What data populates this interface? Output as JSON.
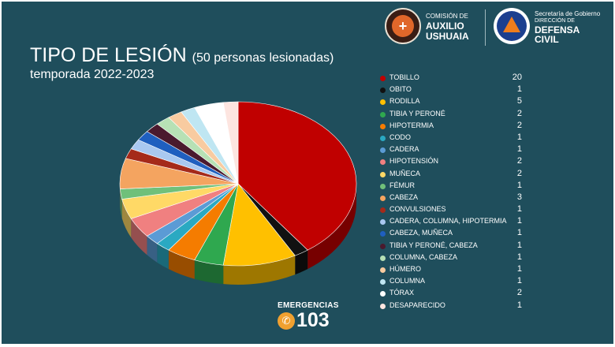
{
  "header": {
    "title": "TIPO DE LESIÓN",
    "title_sub": "(50 personas lesionadas)",
    "subtitle": "temporada 2022-2023"
  },
  "logos": {
    "left": {
      "line1": "COMISIÓN DE",
      "line2": "AUXILIO",
      "line3": "USHUAIA"
    },
    "right": {
      "line1": "Secretaría de Gobierno",
      "line2": "DIRECCIÓN DE",
      "line3": "DEFENSA",
      "line4": "CIVIL"
    }
  },
  "footer": {
    "emergency_label": "EMERGENCIAS",
    "emergency_number": "103"
  },
  "chart_data": {
    "type": "pie",
    "title": "TIPO DE LESIÓN (50 personas lesionadas)",
    "subtitle": "temporada 2022-2023",
    "legend_position": "right",
    "slices": [
      {
        "label": "TOBILLO",
        "value": 20,
        "color": "#c00000"
      },
      {
        "label": "OBITO",
        "value": 1,
        "color": "#111111"
      },
      {
        "label": "RODILLA",
        "value": 5,
        "color": "#ffc000"
      },
      {
        "label": "TIBIA Y PERONÉ",
        "value": 2,
        "color": "#2fa84f"
      },
      {
        "label": "HIPOTERMIA",
        "value": 2,
        "color": "#f57c00"
      },
      {
        "label": "CODO",
        "value": 1,
        "color": "#2aa9c2"
      },
      {
        "label": "CADERA",
        "value": 1,
        "color": "#5b9bd5"
      },
      {
        "label": "HIPOTENSIÓN",
        "value": 2,
        "color": "#f08080"
      },
      {
        "label": "MUÑECA",
        "value": 2,
        "color": "#ffd966"
      },
      {
        "label": "FÉMUR",
        "value": 1,
        "color": "#70c07a"
      },
      {
        "label": "CABEZA",
        "value": 3,
        "color": "#f4a460"
      },
      {
        "label": "CONVULSIONES",
        "value": 1,
        "color": "#a52a1a"
      },
      {
        "label": "CADERA, COLUMNA, HIPOTERMIA",
        "value": 1,
        "color": "#a9c8f0"
      },
      {
        "label": "CABEZA, MUÑECA",
        "value": 1,
        "color": "#1f5fbf"
      },
      {
        "label": "TIBIA Y PERONÉ, CABEZA",
        "value": 1,
        "color": "#4a1a2e"
      },
      {
        "label": "COLUMNA, CABEZA",
        "value": 1,
        "color": "#b7e1b5"
      },
      {
        "label": "HÚMERO",
        "value": 1,
        "color": "#f8cba0"
      },
      {
        "label": "COLUMNA",
        "value": 1,
        "color": "#bfe6f2"
      },
      {
        "label": "TÓRAX",
        "value": 2,
        "color": "#ffffff"
      },
      {
        "label": "DESAPARECIDO",
        "value": 1,
        "color": "#fde5e0"
      }
    ]
  }
}
